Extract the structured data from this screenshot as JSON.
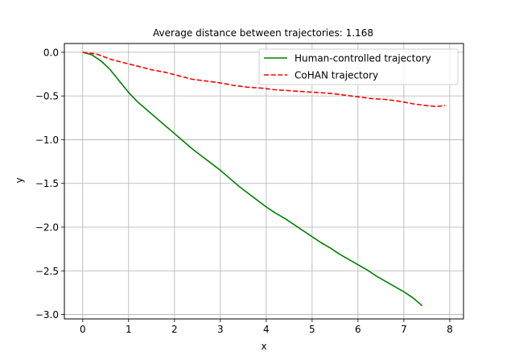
{
  "chart_data": {
    "type": "line",
    "title": "Average distance between trajectories: 1.168",
    "xlabel": "x",
    "ylabel": "y",
    "xlim": [
      -0.4,
      8.3
    ],
    "ylim": [
      -3.05,
      0.1
    ],
    "xticks": [
      0,
      1,
      2,
      3,
      4,
      5,
      6,
      7,
      8
    ],
    "yticks": [
      0.0,
      -0.5,
      -1.0,
      -1.5,
      -2.0,
      -2.5,
      -3.0
    ],
    "xtick_labels": [
      "0",
      "1",
      "2",
      "3",
      "4",
      "5",
      "6",
      "7",
      "8"
    ],
    "ytick_labels": [
      "0.0",
      "−0.5",
      "−1.0",
      "−1.5",
      "−2.0",
      "−2.5",
      "−3.0"
    ],
    "grid": true,
    "legend_position": "top-right",
    "series": [
      {
        "name": "Human-controlled trajectory",
        "color": "#008000",
        "dash": "solid",
        "x": [
          0.0,
          0.2,
          0.4,
          0.6,
          0.8,
          1.0,
          1.2,
          1.4,
          1.6,
          1.8,
          2.0,
          2.2,
          2.4,
          2.6,
          2.8,
          3.0,
          3.2,
          3.4,
          3.6,
          3.8,
          4.0,
          4.2,
          4.4,
          4.6,
          4.8,
          5.0,
          5.2,
          5.4,
          5.6,
          5.8,
          6.0,
          6.2,
          6.4,
          6.6,
          6.8,
          7.0,
          7.2,
          7.4
        ],
        "y": [
          0.0,
          -0.03,
          -0.1,
          -0.2,
          -0.33,
          -0.46,
          -0.57,
          -0.66,
          -0.75,
          -0.84,
          -0.93,
          -1.02,
          -1.11,
          -1.19,
          -1.27,
          -1.35,
          -1.44,
          -1.53,
          -1.61,
          -1.69,
          -1.77,
          -1.84,
          -1.9,
          -1.97,
          -2.04,
          -2.11,
          -2.18,
          -2.24,
          -2.31,
          -2.37,
          -2.43,
          -2.49,
          -2.56,
          -2.62,
          -2.68,
          -2.74,
          -2.81,
          -2.9
        ]
      },
      {
        "name": "CoHAN trajectory",
        "color": "#ff0000",
        "dash": "dashed",
        "x": [
          0.0,
          0.3,
          0.6,
          0.9,
          1.2,
          1.5,
          1.8,
          2.1,
          2.4,
          2.7,
          3.0,
          3.3,
          3.6,
          3.9,
          4.2,
          4.5,
          4.8,
          5.1,
          5.4,
          5.7,
          6.0,
          6.3,
          6.6,
          6.9,
          7.2,
          7.5,
          7.7,
          7.9
        ],
        "y": [
          0.0,
          -0.02,
          -0.08,
          -0.12,
          -0.16,
          -0.2,
          -0.23,
          -0.27,
          -0.31,
          -0.33,
          -0.35,
          -0.38,
          -0.4,
          -0.41,
          -0.43,
          -0.44,
          -0.45,
          -0.46,
          -0.47,
          -0.49,
          -0.51,
          -0.53,
          -0.54,
          -0.56,
          -0.59,
          -0.61,
          -0.62,
          -0.61
        ]
      }
    ]
  }
}
